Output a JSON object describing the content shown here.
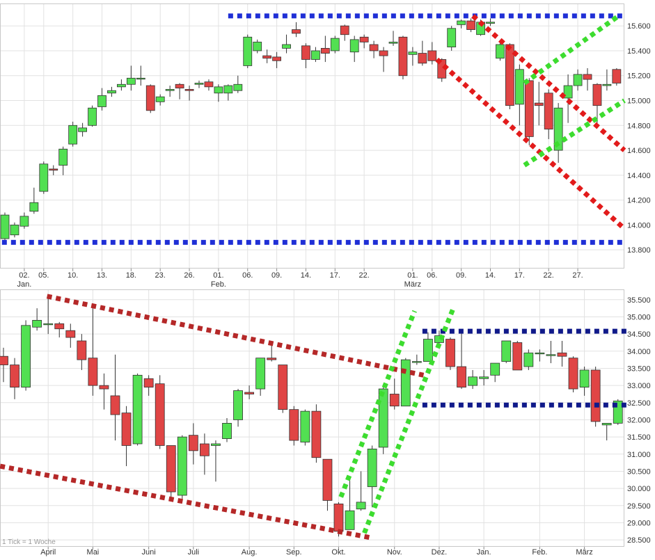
{
  "colors": {
    "up": "#52e052",
    "down": "#e04545",
    "grid": "#e2e2e2",
    "frame": "#c8c8c8",
    "wick": "#333333",
    "blue": "#1f2fd6",
    "navy": "#101a8a",
    "red": "#e21b1b",
    "darkred": "#b52828",
    "green": "#3ddc2f"
  },
  "chart_data": [
    {
      "type": "candlestick",
      "title": "",
      "ylim": [
        13650,
        15780
      ],
      "y_ticks": [
        13800,
        14000,
        14200,
        14400,
        14600,
        14800,
        15000,
        15200,
        15400,
        15600
      ],
      "y_tick_labels": [
        "13.800",
        "14.000",
        "14.200",
        "14.400",
        "14.600",
        "14.800",
        "15.000",
        "15.200",
        "15.400",
        "15.600"
      ],
      "x_ticks": [
        {
          "i": 2,
          "label": "02.",
          "sub": "Jan."
        },
        {
          "i": 4,
          "label": "05.",
          "sub": ""
        },
        {
          "i": 7,
          "label": "10.",
          "sub": ""
        },
        {
          "i": 10,
          "label": "13.",
          "sub": ""
        },
        {
          "i": 13,
          "label": "18.",
          "sub": ""
        },
        {
          "i": 16,
          "label": "23.",
          "sub": ""
        },
        {
          "i": 19,
          "label": "26.",
          "sub": ""
        },
        {
          "i": 22,
          "label": "01.",
          "sub": "Feb."
        },
        {
          "i": 25,
          "label": "06.",
          "sub": ""
        },
        {
          "i": 28,
          "label": "09.",
          "sub": ""
        },
        {
          "i": 31,
          "label": "14.",
          "sub": ""
        },
        {
          "i": 34,
          "label": "17.",
          "sub": ""
        },
        {
          "i": 37,
          "label": "22.",
          "sub": ""
        },
        {
          "i": 42,
          "label": "01.",
          "sub": "März"
        },
        {
          "i": 44,
          "label": "06.",
          "sub": ""
        },
        {
          "i": 47,
          "label": "09.",
          "sub": ""
        },
        {
          "i": 50,
          "label": "14.",
          "sub": ""
        },
        {
          "i": 53,
          "label": "17.",
          "sub": ""
        },
        {
          "i": 56,
          "label": "22.",
          "sub": ""
        },
        {
          "i": 59,
          "label": "27.",
          "sub": ""
        }
      ],
      "candles": [
        [
          13890,
          14080,
          13870,
          14100
        ],
        [
          13920,
          14000,
          13900,
          14020
        ],
        [
          13990,
          14070,
          13970,
          14100
        ],
        [
          14110,
          14180,
          14090,
          14300
        ],
        [
          14270,
          14490,
          14250,
          14510
        ],
        [
          14450,
          14440,
          14400,
          14480
        ],
        [
          14480,
          14610,
          14400,
          14630
        ],
        [
          14650,
          14800,
          14630,
          14830
        ],
        [
          14750,
          14780,
          14710,
          14820
        ],
        [
          14800,
          14940,
          14790,
          14960
        ],
        [
          14950,
          15040,
          14920,
          15100
        ],
        [
          15060,
          15080,
          15030,
          15110
        ],
        [
          15110,
          15130,
          15080,
          15170
        ],
        [
          15130,
          15180,
          15080,
          15280
        ],
        [
          15180,
          15180,
          15120,
          15280
        ],
        [
          15120,
          14920,
          14900,
          15130
        ],
        [
          14990,
          15030,
          14960,
          15050
        ],
        [
          15080,
          15090,
          15030,
          15120
        ],
        [
          15130,
          15100,
          15010,
          15140
        ],
        [
          15090,
          15080,
          15000,
          15120
        ],
        [
          15130,
          15140,
          15100,
          15160
        ],
        [
          15150,
          15110,
          15080,
          15170
        ],
        [
          15060,
          15110,
          14990,
          15130
        ],
        [
          15060,
          15120,
          15000,
          15130
        ],
        [
          15080,
          15130,
          15060,
          15200
        ],
        [
          15280,
          15510,
          15260,
          15530
        ],
        [
          15400,
          15470,
          15380,
          15490
        ],
        [
          15360,
          15340,
          15300,
          15410
        ],
        [
          15350,
          15320,
          15260,
          15390
        ],
        [
          15420,
          15450,
          15380,
          15530
        ],
        [
          15570,
          15540,
          15510,
          15630
        ],
        [
          15440,
          15330,
          15260,
          15460
        ],
        [
          15330,
          15400,
          15310,
          15430
        ],
        [
          15420,
          15380,
          15310,
          15520
        ],
        [
          15400,
          15500,
          15380,
          15520
        ],
        [
          15600,
          15530,
          15480,
          15610
        ],
        [
          15390,
          15490,
          15310,
          15520
        ],
        [
          15510,
          15470,
          15420,
          15530
        ],
        [
          15450,
          15400,
          15340,
          15480
        ],
        [
          15400,
          15360,
          15230,
          15430
        ],
        [
          15460,
          15470,
          15440,
          15560
        ],
        [
          15510,
          15200,
          15170,
          15520
        ],
        [
          15370,
          15390,
          15280,
          15430
        ],
        [
          15380,
          15300,
          15280,
          15480
        ],
        [
          15400,
          15320,
          15290,
          15470
        ],
        [
          15330,
          15180,
          15150,
          15340
        ],
        [
          15430,
          15580,
          15400,
          15600
        ],
        [
          15610,
          15640,
          15580,
          15650
        ],
        [
          15640,
          15570,
          15550,
          15660
        ],
        [
          15530,
          15630,
          15520,
          15650
        ],
        [
          15620,
          15630,
          15600,
          15660
        ],
        [
          15340,
          15450,
          15320,
          15460
        ],
        [
          15450,
          14960,
          14930,
          15460
        ],
        [
          14970,
          15250,
          14800,
          15290
        ],
        [
          15160,
          14710,
          14640,
          15180
        ],
        [
          14980,
          14960,
          14800,
          15150
        ],
        [
          15060,
          14770,
          14690,
          15090
        ],
        [
          14600,
          14940,
          14500,
          14980
        ],
        [
          15020,
          15120,
          14820,
          15210
        ],
        [
          15120,
          15210,
          15080,
          15250
        ],
        [
          15210,
          15170,
          15080,
          15260
        ],
        [
          15130,
          14960,
          14820,
          15140
        ],
        [
          15120,
          15130,
          15080,
          15250
        ],
        [
          15250,
          15140,
          15120,
          15260
        ]
      ],
      "trendlines": [
        {
          "color": "blue",
          "points": [
            [
              23,
              15680
            ],
            [
              63.8,
              15680
            ]
          ]
        },
        {
          "color": "blue",
          "points": [
            [
              -0.3,
              13860
            ],
            [
              63.8,
              13860
            ]
          ]
        },
        {
          "color": "red",
          "points": [
            [
              44.5,
              15330
            ],
            [
              63.8,
              13970
            ]
          ]
        },
        {
          "color": "red",
          "points": [
            [
              48.2,
              15680
            ],
            [
              63.8,
              14600
            ]
          ]
        },
        {
          "color": "green",
          "points": [
            [
              53.5,
              14480
            ],
            [
              63.8,
              15000
            ]
          ]
        },
        {
          "color": "green",
          "points": [
            [
              53.5,
              15140
            ],
            [
              63.2,
              15680
            ]
          ]
        }
      ]
    },
    {
      "type": "candlestick",
      "title": "",
      "note": "1 Tick = 1 Woche",
      "ylim": [
        28300,
        35800
      ],
      "y_ticks": [
        28500,
        29000,
        29500,
        30000,
        30500,
        31000,
        31500,
        32000,
        32500,
        33000,
        33500,
        34000,
        34500,
        35000,
        35500
      ],
      "y_tick_labels": [
        "28.500",
        "29.000",
        "29.500",
        "30.000",
        "30.500",
        "31.000",
        "31.500",
        "32.000",
        "32.500",
        "33.000",
        "33.500",
        "34.000",
        "34.500",
        "35.000",
        "35.500"
      ],
      "x_ticks": [
        {
          "i": 4,
          "label": "April",
          "sub": ""
        },
        {
          "i": 8,
          "label": "Mai",
          "sub": ""
        },
        {
          "i": 13,
          "label": "Juni",
          "sub": ""
        },
        {
          "i": 17,
          "label": "Juli",
          "sub": ""
        },
        {
          "i": 22,
          "label": "Aug.",
          "sub": ""
        },
        {
          "i": 26,
          "label": "Sep.",
          "sub": ""
        },
        {
          "i": 30,
          "label": "Okt.",
          "sub": ""
        },
        {
          "i": 35,
          "label": "Nov.",
          "sub": ""
        },
        {
          "i": 39,
          "label": "Dez.",
          "sub": ""
        },
        {
          "i": 43,
          "label": "Jan.",
          "sub": ""
        },
        {
          "i": 48,
          "label": "Feb.",
          "sub": ""
        },
        {
          "i": 52,
          "label": "März",
          "sub": ""
        }
      ],
      "candles": [
        [
          33850,
          33600,
          33100,
          34100
        ],
        [
          33600,
          32950,
          32600,
          33800
        ],
        [
          32950,
          34750,
          32850,
          34900
        ],
        [
          34700,
          34900,
          34600,
          35250
        ],
        [
          34800,
          34800,
          34500,
          35550
        ],
        [
          34800,
          34650,
          34400,
          34850
        ],
        [
          34600,
          34400,
          34100,
          34800
        ],
        [
          34300,
          33750,
          33450,
          34500
        ],
        [
          33800,
          33000,
          32700,
          35300
        ],
        [
          33000,
          32900,
          32300,
          33350
        ],
        [
          32700,
          32150,
          31400,
          33900
        ],
        [
          32200,
          31250,
          30650,
          32400
        ],
        [
          31300,
          33300,
          31250,
          33350
        ],
        [
          33200,
          32950,
          32700,
          33300
        ],
        [
          33050,
          31250,
          31150,
          33300
        ],
        [
          31250,
          29900,
          29700,
          31250
        ],
        [
          29800,
          31500,
          29700,
          31550
        ],
        [
          31550,
          31100,
          30700,
          31900
        ],
        [
          31300,
          30950,
          30400,
          31600
        ],
        [
          31250,
          31300,
          30200,
          31400
        ],
        [
          31450,
          31900,
          31350,
          32050
        ],
        [
          32000,
          32850,
          31800,
          32900
        ],
        [
          32800,
          32750,
          32600,
          33000
        ],
        [
          32900,
          33800,
          32700,
          33800
        ],
        [
          33800,
          33750,
          33700,
          34200
        ],
        [
          33600,
          32300,
          32200,
          33600
        ],
        [
          32300,
          31400,
          31250,
          32400
        ],
        [
          31350,
          32250,
          31250,
          32300
        ],
        [
          32250,
          30900,
          30750,
          32450
        ],
        [
          30850,
          29650,
          29350,
          30850
        ],
        [
          29550,
          28750,
          28600,
          29600
        ],
        [
          28800,
          29350,
          28800,
          30300
        ],
        [
          29400,
          29600,
          29350,
          30500
        ],
        [
          30050,
          31150,
          29450,
          31250
        ],
        [
          31200,
          32900,
          31000,
          32950
        ],
        [
          32750,
          32400,
          32300,
          33200
        ],
        [
          32400,
          33750,
          32400,
          33800
        ],
        [
          33700,
          33700,
          33600,
          33900
        ],
        [
          33700,
          34350,
          33700,
          34550
        ],
        [
          34250,
          34450,
          34200,
          34600
        ],
        [
          34350,
          33550,
          33450,
          34400
        ],
        [
          33550,
          32950,
          32900,
          34600
        ],
        [
          33000,
          33250,
          32900,
          33450
        ],
        [
          33200,
          33250,
          33000,
          33450
        ],
        [
          33300,
          33650,
          33100,
          33650
        ],
        [
          33700,
          34300,
          33650,
          34300
        ],
        [
          34250,
          33450,
          33450,
          34300
        ],
        [
          33550,
          33950,
          33450,
          34050
        ],
        [
          33950,
          33950,
          33700,
          34050
        ],
        [
          33900,
          33900,
          33650,
          34300
        ],
        [
          33950,
          33850,
          33550,
          34300
        ],
        [
          33800,
          32900,
          32800,
          33850
        ],
        [
          32950,
          33450,
          32700,
          33550
        ],
        [
          33450,
          31950,
          31800,
          33550
        ],
        [
          31850,
          31900,
          31400,
          31900
        ],
        [
          31900,
          32550,
          31850,
          32600
        ]
      ],
      "trendlines": [
        {
          "color": "navy",
          "points": [
            [
              37.5,
              34580
            ],
            [
              55.8,
              34580
            ]
          ]
        },
        {
          "color": "navy",
          "points": [
            [
              37.5,
              32430
            ],
            [
              55.8,
              32430
            ]
          ]
        },
        {
          "color": "darkred",
          "points": [
            [
              3.9,
              35600
            ],
            [
              37.6,
              33300
            ]
          ]
        },
        {
          "color": "darkred",
          "points": [
            [
              -0.3,
              30650
            ],
            [
              33.1,
              28550
            ]
          ]
        },
        {
          "color": "green",
          "points": [
            [
              30.2,
              29750
            ],
            [
              36.8,
              35170
            ]
          ]
        },
        {
          "color": "green",
          "points": [
            [
              32.3,
              28700
            ],
            [
              40.3,
              35280
            ]
          ]
        }
      ]
    }
  ]
}
